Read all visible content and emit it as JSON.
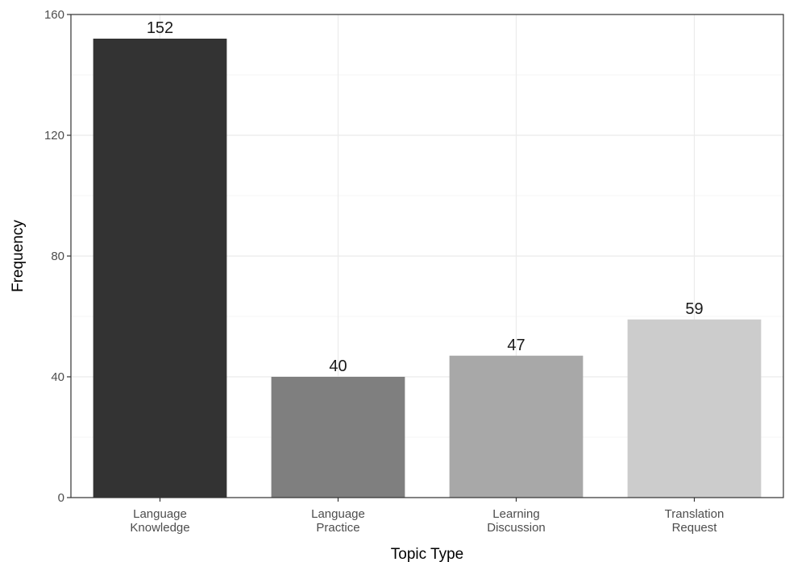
{
  "chart_data": {
    "type": "bar",
    "title": "",
    "xlabel": "Topic Type",
    "ylabel": "Frequency",
    "categories": [
      [
        "Language",
        "Knowledge"
      ],
      [
        "Language",
        "Practice"
      ],
      [
        "Learning",
        "Discussion"
      ],
      [
        "Translation",
        "Request"
      ]
    ],
    "values": [
      152,
      40,
      47,
      59
    ],
    "data_labels": [
      "152",
      "40",
      "47",
      "59"
    ],
    "colors": [
      "#333333",
      "#7f7f7f",
      "#a8a8a8",
      "#cccccc"
    ],
    "ylim": [
      0,
      160
    ],
    "yticks": [
      0,
      40,
      80,
      120,
      160
    ],
    "ytick_labels": [
      "0",
      "40",
      "80",
      "120",
      "160"
    ],
    "grid": true,
    "legend": "none"
  }
}
